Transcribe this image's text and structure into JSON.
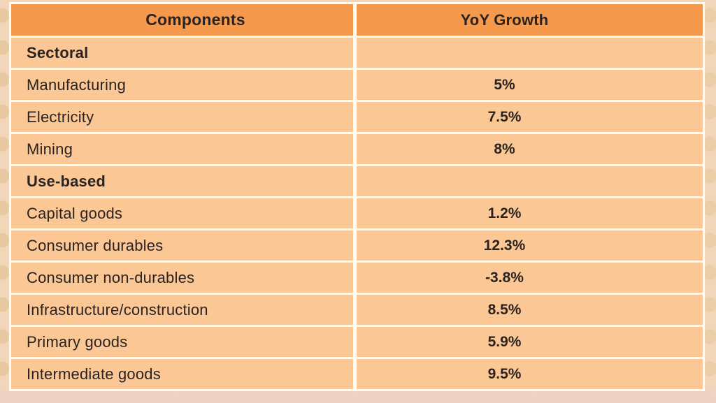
{
  "table": {
    "columns": [
      "Components",
      "YoY Growth"
    ],
    "rows": [
      {
        "label": "Sectoral",
        "value": "",
        "type": "section"
      },
      {
        "label": "Manufacturing",
        "value": "5%",
        "type": "data"
      },
      {
        "label": "Electricity",
        "value": "7.5%",
        "type": "data"
      },
      {
        "label": "Mining",
        "value": "8%",
        "type": "data"
      },
      {
        "label": "Use-based",
        "value": "",
        "type": "section"
      },
      {
        "label": "Capital goods",
        "value": "1.2%",
        "type": "data"
      },
      {
        "label": "Consumer durables",
        "value": "12.3%",
        "type": "data"
      },
      {
        "label": "Consumer non-durables",
        "value": "-3.8%",
        "type": "data"
      },
      {
        "label": "Infrastructure/construction",
        "value": "8.5%",
        "type": "data"
      },
      {
        "label": "Primary goods",
        "value": "5.9%",
        "type": "data"
      },
      {
        "label": "Intermediate goods",
        "value": "9.5%",
        "type": "data"
      }
    ]
  },
  "chart_data": {
    "type": "table",
    "columns": [
      "Components",
      "YoY Growth"
    ],
    "unit": "%",
    "sections": [
      {
        "name": "Sectoral",
        "rows": [
          {
            "component": "Manufacturing",
            "yoy_growth_pct": 5.0
          },
          {
            "component": "Electricity",
            "yoy_growth_pct": 7.5
          },
          {
            "component": "Mining",
            "yoy_growth_pct": 8.0
          }
        ]
      },
      {
        "name": "Use-based",
        "rows": [
          {
            "component": "Capital goods",
            "yoy_growth_pct": 1.2
          },
          {
            "component": "Consumer durables",
            "yoy_growth_pct": 12.3
          },
          {
            "component": "Consumer non-durables",
            "yoy_growth_pct": -3.8
          },
          {
            "component": "Infrastructure/construction",
            "yoy_growth_pct": 8.5
          },
          {
            "component": "Primary goods",
            "yoy_growth_pct": 5.9
          },
          {
            "component": "Intermediate goods",
            "yoy_growth_pct": 9.5
          }
        ]
      }
    ]
  },
  "colors": {
    "header_bg": "#F59A4D",
    "row_bg": "#FBC795",
    "page_bg": "#F2D6B9",
    "page_bg_bottom": "#EED2C4",
    "grid_line": "#FDFCF8",
    "text": "#2B2320"
  }
}
